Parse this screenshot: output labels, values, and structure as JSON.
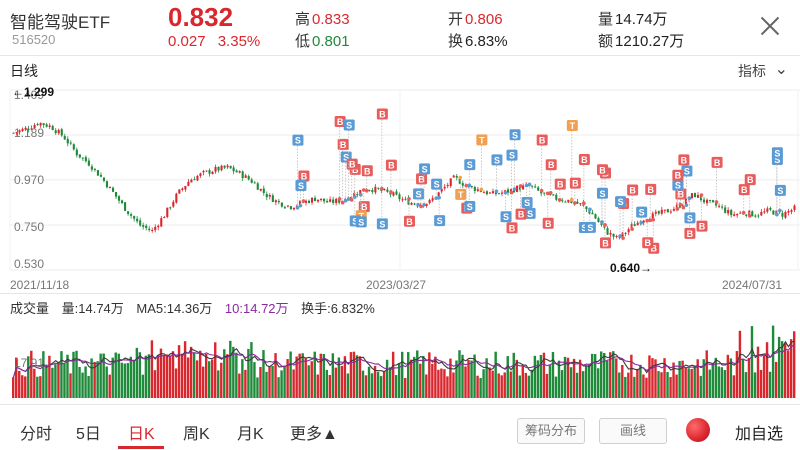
{
  "header": {
    "name": "智能驾驶ETF",
    "code": "516520",
    "price": "0.832",
    "change": "0.027",
    "change_pct": "3.35%",
    "high_label": "高",
    "high": "0.833",
    "low_label": "低",
    "low": "0.801",
    "open_label": "开",
    "open": "0.806",
    "turnover_label": "换",
    "turnover": "6.83%",
    "volume_label": "量",
    "volume": "14.74万",
    "amount_label": "额",
    "amount": "1210.27万"
  },
  "kline": {
    "period_label": "日线",
    "indicator_label": "指标",
    "y_ticks": [
      "1.409",
      "1.189",
      "0.970",
      "0.750",
      "0.530"
    ],
    "high_marker": "←1.299",
    "low_marker": "0.640→",
    "dates": [
      "2021/11/18",
      "2023/03/27",
      "2024/07/31"
    ],
    "trade_tags": [
      "B",
      "S",
      "T"
    ]
  },
  "volume": {
    "title": "成交量",
    "vol": "量:14.74万",
    "ma5": "MA5:14.36万",
    "ma10": "10:14.72万",
    "turnover": "换手:6.832%",
    "y_tick": "17.91"
  },
  "bottom_tabs": {
    "items": [
      "分时",
      "5日",
      "日K",
      "周K",
      "月K",
      "更多▲"
    ],
    "active_index": 2,
    "chip_dist": "筹码分布",
    "draw_line": "画线",
    "add_favorite": "加自选"
  },
  "colors": {
    "up": "#d9272e",
    "down": "#1e8a3a",
    "ma": "#8a2a9e",
    "buy_tag": "#e85c5c",
    "sell_tag": "#5b9bd5",
    "t_tag": "#f0a050"
  },
  "chart_data": {
    "type": "line",
    "y_ticks": [
      1.409,
      1.189,
      0.97,
      0.75,
      0.53
    ],
    "ylim": [
      0.53,
      1.409
    ],
    "max_marker": 1.299,
    "min_marker": 0.64,
    "x_dates": [
      "2021/11/18",
      "2023/03/27",
      "2024/07/31"
    ],
    "price_series": [
      1.2,
      1.22,
      1.25,
      1.23,
      1.18,
      1.1,
      1.05,
      0.98,
      0.9,
      0.82,
      0.75,
      0.72,
      0.8,
      0.9,
      0.97,
      1.0,
      1.02,
      1.03,
      1.0,
      0.96,
      0.9,
      0.86,
      0.84,
      0.86,
      0.88,
      0.86,
      0.87,
      0.9,
      0.93,
      0.92,
      0.9,
      0.87,
      0.85,
      0.86,
      0.92,
      0.98,
      0.94,
      0.92,
      0.9,
      0.91,
      0.93,
      0.94,
      0.9,
      0.88,
      0.87,
      0.85,
      0.8,
      0.72,
      0.68,
      0.74,
      0.78,
      0.8,
      0.82,
      0.85,
      0.9,
      0.86,
      0.84,
      0.8,
      0.81,
      0.8,
      0.82,
      0.8,
      0.83
    ],
    "volume_y_tick": 17.91
  }
}
